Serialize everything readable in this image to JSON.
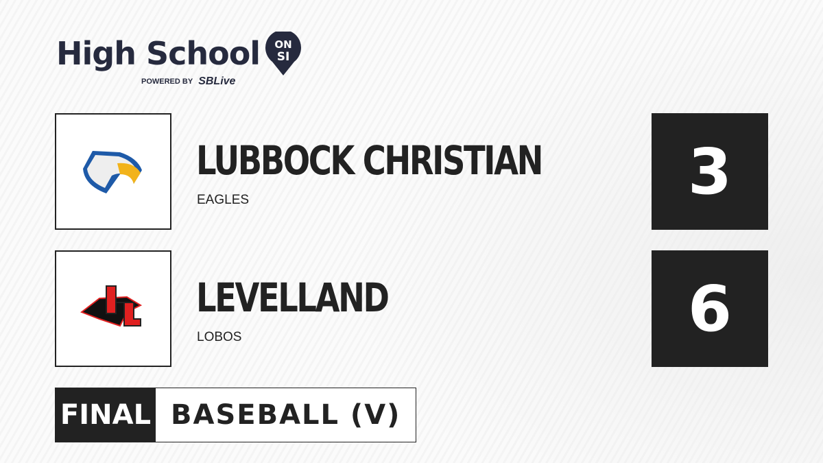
{
  "brand": {
    "title": "High School",
    "pin_top": "ON",
    "pin_bottom": "SI",
    "powered_by": "POWERED BY",
    "partner_a": "S",
    "partner_b": "SBLive"
  },
  "teams": [
    {
      "name": "LUBBOCK CHRISTIAN",
      "mascot": "EAGLES",
      "score": "3",
      "logo": "eagle-logo"
    },
    {
      "name": "LEVELLAND",
      "mascot": "LOBOS",
      "score": "6",
      "logo": "wolf-ll-logo"
    }
  ],
  "footer": {
    "status": "FINAL",
    "sport": "BASEBALL (V)"
  },
  "colors": {
    "dark": "#222222",
    "brand_navy": "#262a3e",
    "sblive_blue": "#1fa3e0"
  }
}
